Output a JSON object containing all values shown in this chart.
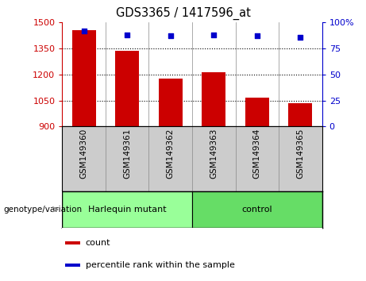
{
  "title": "GDS3365 / 1417596_at",
  "samples": [
    "GSM149360",
    "GSM149361",
    "GSM149362",
    "GSM149363",
    "GSM149364",
    "GSM149365"
  ],
  "bar_values": [
    1455,
    1335,
    1178,
    1215,
    1068,
    1033
  ],
  "percentile_values": [
    92,
    88,
    87,
    88,
    87,
    86
  ],
  "bar_color": "#cc0000",
  "dot_color": "#0000cc",
  "ylim_left": [
    900,
    1500
  ],
  "ylim_right": [
    0,
    100
  ],
  "yticks_left": [
    900,
    1050,
    1200,
    1350,
    1500
  ],
  "yticks_right": [
    0,
    25,
    50,
    75,
    100
  ],
  "grid_lines": [
    1350,
    1200,
    1050
  ],
  "groups": [
    {
      "label": "Harlequin mutant",
      "indices": [
        0,
        1,
        2
      ]
    },
    {
      "label": "control",
      "indices": [
        3,
        4,
        5
      ]
    }
  ],
  "group_label": "genotype/variation",
  "legend_count_label": "count",
  "legend_percentile_label": "percentile rank within the sample",
  "bar_width": 0.55,
  "background_color": "#ffffff",
  "plot_bg_color": "#ffffff",
  "tick_label_area_color": "#cccccc",
  "group_area_color_harlequin": "#99ff99",
  "group_area_color_control": "#66dd66",
  "fig_width": 4.61,
  "fig_height": 3.54
}
